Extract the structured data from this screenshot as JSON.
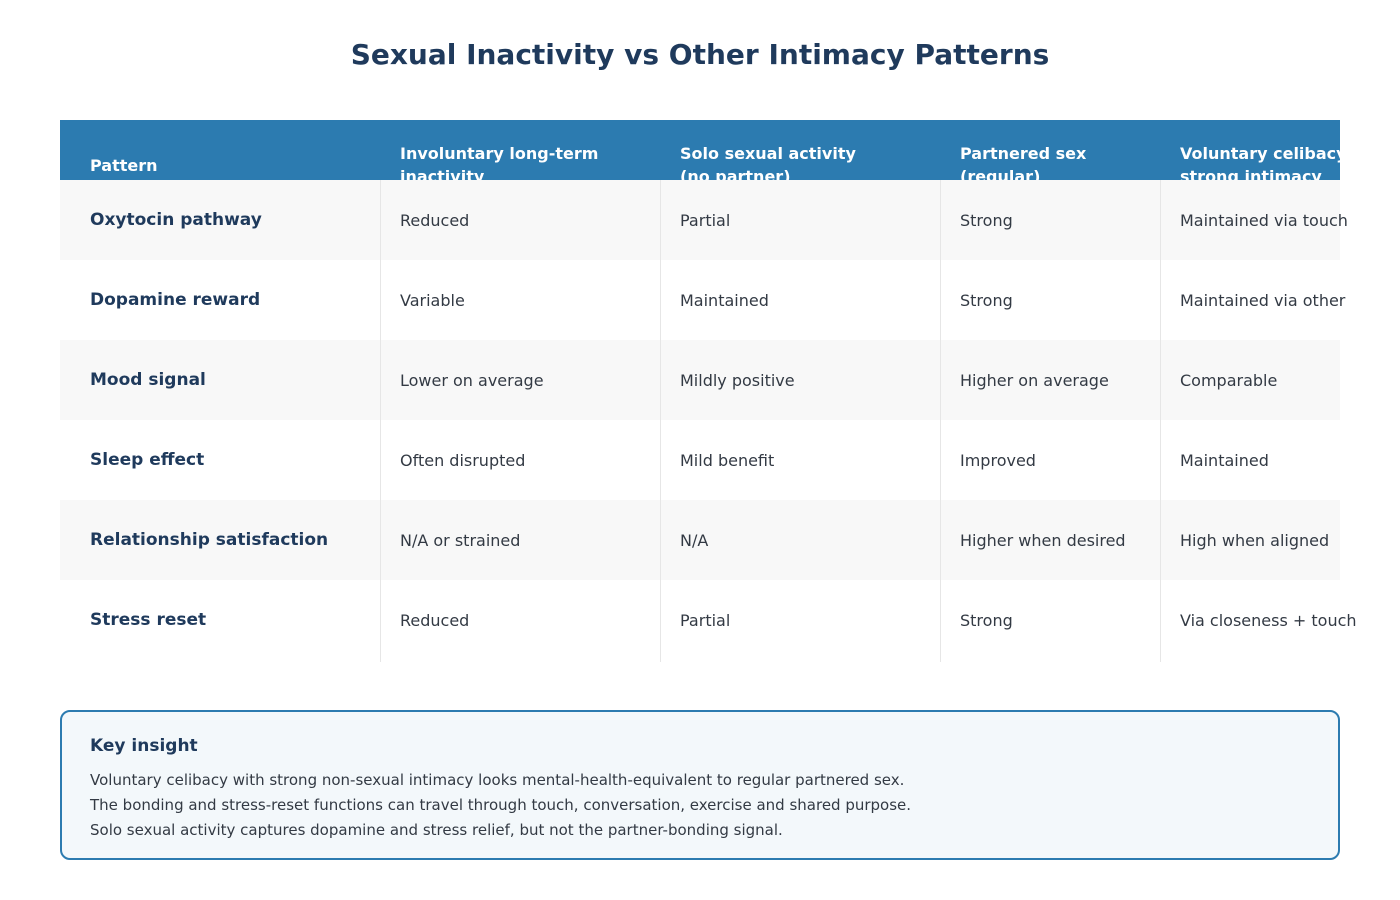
{
  "title": "Sexual Inactivity vs Other Intimacy Patterns",
  "table": {
    "header": [
      "Pattern",
      "Involuntary long-term inactivity",
      "Solo sexual activity (no partner)",
      "Partnered sex (regular)",
      "Voluntary celibacy + strong intimacy"
    ],
    "rows": [
      [
        "Oxytocin pathway",
        "Reduced",
        "Partial",
        "Strong",
        "Maintained via touch"
      ],
      [
        "Dopamine reward",
        "Variable",
        "Maintained",
        "Strong",
        "Maintained via other"
      ],
      [
        "Mood signal",
        "Lower on average",
        "Mildly positive",
        "Higher on average",
        "Comparable"
      ],
      [
        "Sleep effect",
        "Often disrupted",
        "Mild benefit",
        "Improved",
        "Maintained"
      ],
      [
        "Relationship satisfaction",
        "N/A or strained",
        "N/A",
        "Higher when desired",
        "High when aligned"
      ],
      [
        "Stress reset",
        "Reduced",
        "Partial",
        "Strong",
        "Via closeness + touch"
      ]
    ]
  },
  "insight": {
    "title": "Key insight",
    "lines": [
      "Voluntary celibacy with strong non-sexual intimacy looks mental-health-equivalent to regular partnered sex.",
      "The bonding and stress-reset functions can travel through touch, conversation, exercise and shared purpose.",
      "Solo sexual activity captures dopamine and stress relief, but not the partner-bonding signal."
    ]
  }
}
